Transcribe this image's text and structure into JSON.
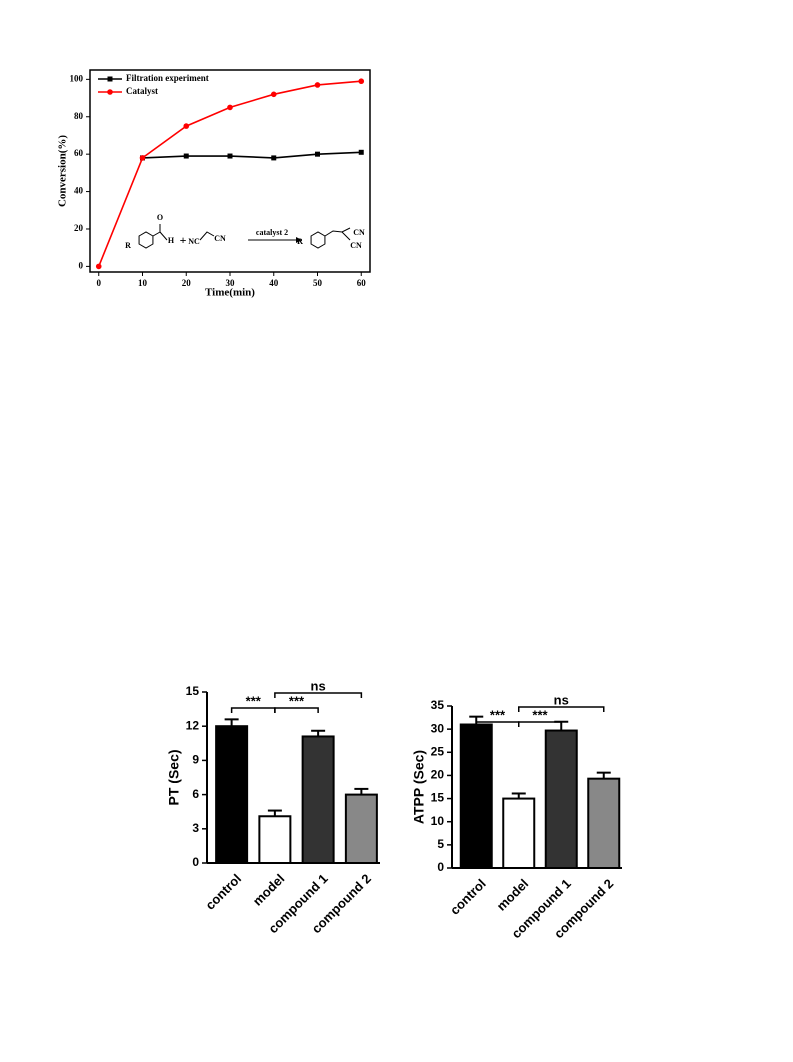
{
  "chart_data": [
    {
      "type": "line",
      "x": [
        0,
        10,
        20,
        30,
        40,
        50,
        60
      ],
      "series": [
        {
          "name": "Filtration experiment",
          "color": "#000000",
          "marker": "square",
          "values": [
            null,
            58,
            59,
            59,
            58,
            60,
            61
          ]
        },
        {
          "name": "Catalyst",
          "color": "#ff0000",
          "marker": "circle",
          "values": [
            0,
            58,
            75,
            85,
            92,
            97,
            99
          ]
        }
      ],
      "xlim": [
        -2,
        62
      ],
      "xticks": [
        0,
        10,
        20,
        30,
        40,
        50,
        60
      ],
      "ylim": [
        -3,
        105
      ],
      "yticks": [
        0,
        20,
        40,
        60,
        80,
        100
      ],
      "xlabel": "Time(min)",
      "ylabel": "Conversion(%)",
      "legend": "upper-left",
      "annotations": [
        "R",
        "O",
        "H",
        "+",
        "NC",
        "CN",
        "catalyst 2",
        "R",
        "CN",
        "CN"
      ]
    },
    {
      "type": "bar",
      "categories": [
        "control",
        "model",
        "compound 1",
        "compound 2"
      ],
      "values": [
        12,
        4.1,
        11.1,
        6.0
      ],
      "errors": [
        0.6,
        0.5,
        0.5,
        0.5
      ],
      "colors": [
        "#000000",
        "#ffffff",
        "#333333",
        "#888888"
      ],
      "ylim": [
        0,
        15
      ],
      "yticks": [
        0,
        3,
        6,
        9,
        12,
        15
      ],
      "ylabel": "PT (Sec)",
      "comparisons": [
        {
          "label": "***",
          "from": 0,
          "to": 1
        },
        {
          "label": "***",
          "from": 1,
          "to": 2
        },
        {
          "label": "ns",
          "from": 1,
          "to": 3
        }
      ]
    },
    {
      "type": "bar",
      "categories": [
        "control",
        "model",
        "compound 1",
        "compound 2"
      ],
      "values": [
        31,
        15,
        29.7,
        19.3
      ],
      "errors": [
        1.7,
        1.1,
        1.9,
        1.3
      ],
      "colors": [
        "#000000",
        "#ffffff",
        "#333333",
        "#888888"
      ],
      "ylim": [
        0,
        35
      ],
      "yticks": [
        0,
        5,
        10,
        15,
        20,
        25,
        30,
        35
      ],
      "ylabel": "ATPP (Sec)",
      "comparisons": [
        {
          "label": "***",
          "from": 0,
          "to": 1
        },
        {
          "label": "***",
          "from": 1,
          "to": 2
        },
        {
          "label": "ns",
          "from": 1,
          "to": 3
        }
      ]
    }
  ]
}
